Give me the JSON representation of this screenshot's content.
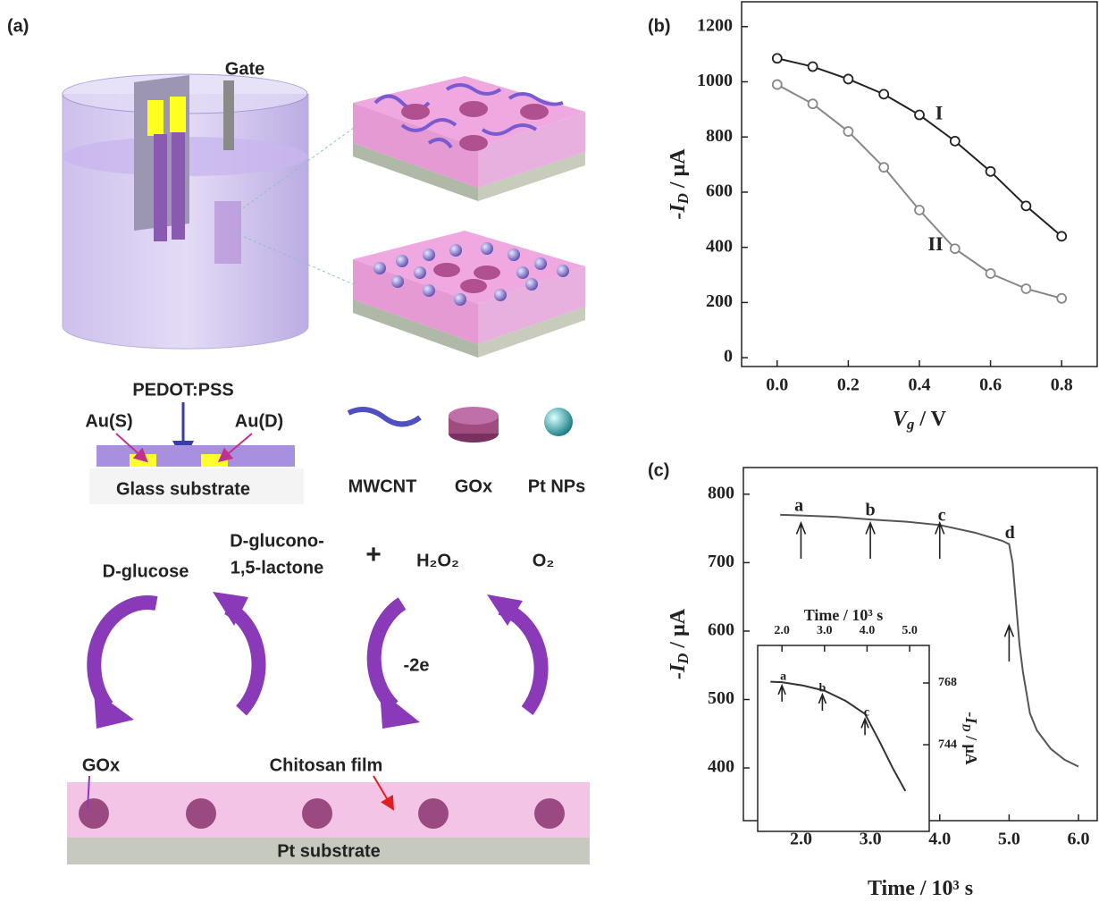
{
  "panel_a": {
    "label": "(a)",
    "gate": "Gate",
    "pedot": "PEDOT:PSS",
    "au_s": "Au(S)",
    "au_d": "Au(D)",
    "glass": "Glass substrate",
    "legend": [
      "MWCNT",
      "GOx",
      "Pt NPs"
    ],
    "reaction": {
      "glucose": "D-glucose",
      "lactone_1": "D-glucono-",
      "lactone_2": "1,5-lactone",
      "plus": "+",
      "h2o2": "H₂O₂",
      "o2": "O₂",
      "electrons": "-2e"
    },
    "electrode": {
      "gox": "GOx",
      "chitosan": "Chitosan film",
      "substrate": "Pt substrate"
    }
  },
  "chart_data": [
    {
      "type": "line",
      "panel_label": "(b)",
      "x": [
        0,
        0.1,
        0.2,
        0.3,
        0.4,
        0.5,
        0.6,
        0.7,
        0.8
      ],
      "series": [
        {
          "name": "I",
          "color": "#222222",
          "marker": "circle",
          "values": [
            1085,
            1055,
            1010,
            955,
            880,
            785,
            675,
            550,
            440
          ]
        },
        {
          "name": "II",
          "color": "#888888",
          "marker": "circle",
          "values": [
            990,
            920,
            820,
            690,
            535,
            395,
            305,
            250,
            215
          ]
        }
      ],
      "xlim": [
        -0.1,
        0.9
      ],
      "ylim": [
        -32,
        1290
      ],
      "xticks": [
        {
          "value": 0,
          "label": "0.0"
        },
        0.2,
        0.4,
        0.6,
        0.8
      ],
      "yticks": [
        0,
        200,
        400,
        600,
        800,
        1000,
        1200
      ],
      "xlabel": {
        "main": "V",
        "sub": "g",
        "unit": " / V"
      },
      "ylabel": {
        "main": "-I",
        "sub": "D",
        "unit": " / μA"
      }
    },
    {
      "type": "line",
      "panel_label": "(c)",
      "x": [
        1.7,
        2.0,
        2.5,
        3.0,
        3.5,
        4.0,
        4.5,
        4.9,
        5.0,
        5.05,
        5.1,
        5.15,
        5.2,
        5.3,
        5.4,
        5.6,
        5.8,
        6.0
      ],
      "series": [
        {
          "color": "#555555",
          "values": [
            770,
            769,
            767,
            763,
            760,
            755,
            744,
            732,
            727,
            700,
            640,
            580,
            540,
            480,
            455,
            428,
            412,
            402
          ]
        }
      ],
      "xlim": [
        1.17,
        6.27
      ],
      "ylim": [
        323,
        839
      ],
      "xticks": [
        {
          "value": 2,
          "label": "2.0"
        },
        {
          "value": 3,
          "label": "3.0"
        },
        {
          "value": 4,
          "label": "4.0"
        },
        {
          "value": 5,
          "label": "5.0"
        },
        {
          "value": 6,
          "label": "6.0"
        }
      ],
      "yticks": [
        400,
        500,
        600,
        700,
        800
      ],
      "xlabel": {
        "main": "Time / 10³ s"
      },
      "ylabel": {
        "main": "-I",
        "sub": "D",
        "unit": " / μA"
      },
      "annotations": [
        {
          "text": "a",
          "x": 1.97,
          "y": 781.7
        },
        {
          "text": "b",
          "x": 3.0,
          "y": 775
        },
        {
          "text": "c",
          "x": 4.03,
          "y": 767
        },
        {
          "text": "d",
          "x": 5.01,
          "y": 742
        }
      ],
      "arrows": [
        {
          "x": 2.0,
          "y": 758
        },
        {
          "x": 3.0,
          "y": 758
        },
        {
          "x": 4.0,
          "y": 758
        },
        {
          "x": 5.0,
          "y": 608
        }
      ]
    },
    {
      "type": "line",
      "x": [
        1.73,
        2.0,
        2.5,
        3.0,
        3.5,
        3.95,
        4.3,
        4.6,
        4.9
      ],
      "series": [
        {
          "color": "#333333",
          "values": [
            768.5,
            768.3,
            767,
            765,
            761,
            756,
            745,
            735,
            726
          ]
        }
      ],
      "xlim": [
        1.43,
        5.46
      ],
      "ylim": [
        710.3,
        782.6
      ],
      "xticks": [
        {
          "value": 2,
          "label": "2.0"
        },
        {
          "value": 3,
          "label": "3.0"
        },
        {
          "value": 4,
          "label": "4.0"
        },
        {
          "value": 5,
          "label": "5.0"
        }
      ],
      "yticks": [
        744,
        768
      ],
      "xlabel": {
        "main": "Time / 10³ s"
      },
      "ylabel": {
        "main": "-I",
        "sub": "D",
        "unit": " / μA"
      },
      "annotations": [
        {
          "text": "a",
          "x": 2.03,
          "y": 770.3
        },
        {
          "text": "b",
          "x": 2.95,
          "y": 765.8
        },
        {
          "text": "c",
          "x": 3.99,
          "y": 756.4
        }
      ],
      "arrows": [
        {
          "x": 2.0,
          "y": 767
        },
        {
          "x": 2.95,
          "y": 763.5
        },
        {
          "x": 3.95,
          "y": 754
        }
      ]
    }
  ]
}
